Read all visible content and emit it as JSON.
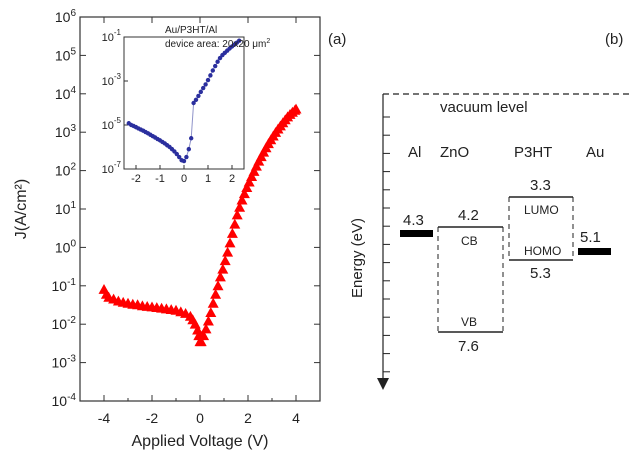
{
  "panels": {
    "a_label": "(a)",
    "b_label": "(b)"
  },
  "chart_data": [
    {
      "type": "scatter",
      "id": "main-jv",
      "xlabel": "Applied Voltage (V)",
      "ylabel": "J(A/cm²)",
      "xlim": [
        -5,
        5
      ],
      "ylim_log10": [
        -4,
        6
      ],
      "yscale": "log",
      "xticks": [
        -4,
        -2,
        0,
        2,
        4
      ],
      "xtick_labels": [
        "-4",
        "-2",
        "0",
        "2",
        "4"
      ],
      "yticks_log10": [
        -4,
        -3,
        -2,
        -1,
        0,
        1,
        2,
        3,
        4,
        5,
        6
      ],
      "ytick_labels": [
        "10-4",
        "10-3",
        "10-2",
        "10-1",
        "100",
        "101",
        "102",
        "103",
        "104",
        "105",
        "106"
      ],
      "marker": "triangle",
      "color": "#ff0000",
      "grid": false,
      "points": [
        [
          -4.0,
          0.08
        ],
        [
          -3.9,
          0.06
        ],
        [
          -3.8,
          0.05
        ],
        [
          -3.6,
          0.045
        ],
        [
          -3.4,
          0.04
        ],
        [
          -3.2,
          0.037
        ],
        [
          -3.0,
          0.035
        ],
        [
          -2.8,
          0.033
        ],
        [
          -2.6,
          0.032
        ],
        [
          -2.4,
          0.03
        ],
        [
          -2.2,
          0.029
        ],
        [
          -2.0,
          0.028
        ],
        [
          -1.8,
          0.027
        ],
        [
          -1.6,
          0.026
        ],
        [
          -1.4,
          0.025
        ],
        [
          -1.2,
          0.024
        ],
        [
          -1.0,
          0.023
        ],
        [
          -0.8,
          0.021
        ],
        [
          -0.6,
          0.019
        ],
        [
          -0.4,
          0.016
        ],
        [
          -0.3,
          0.013
        ],
        [
          -0.2,
          0.01
        ],
        [
          -0.1,
          0.007
        ],
        [
          -0.05,
          0.005
        ],
        [
          0.0,
          0.0035
        ],
        [
          0.05,
          0.0035
        ],
        [
          0.15,
          0.005
        ],
        [
          0.25,
          0.0075
        ],
        [
          0.35,
          0.012
        ],
        [
          0.45,
          0.02
        ],
        [
          0.55,
          0.035
        ],
        [
          0.65,
          0.06
        ],
        [
          0.75,
          0.1
        ],
        [
          0.85,
          0.17
        ],
        [
          0.95,
          0.27
        ],
        [
          1.05,
          0.45
        ],
        [
          1.15,
          0.75
        ],
        [
          1.25,
          1.3
        ],
        [
          1.35,
          2.3
        ],
        [
          1.45,
          4.0
        ],
        [
          1.55,
          7.0
        ],
        [
          1.65,
          11
        ],
        [
          1.75,
          17
        ],
        [
          1.85,
          25
        ],
        [
          1.95,
          36
        ],
        [
          2.05,
          50
        ],
        [
          2.15,
          70
        ],
        [
          2.25,
          95
        ],
        [
          2.35,
          130
        ],
        [
          2.45,
          175
        ],
        [
          2.55,
          230
        ],
        [
          2.65,
          300
        ],
        [
          2.75,
          390
        ],
        [
          2.85,
          500
        ],
        [
          2.95,
          630
        ],
        [
          3.05,
          790
        ],
        [
          3.15,
          980
        ],
        [
          3.25,
          1200
        ],
        [
          3.35,
          1450
        ],
        [
          3.45,
          1750
        ],
        [
          3.55,
          2100
        ],
        [
          3.65,
          2500
        ],
        [
          3.75,
          2900
        ],
        [
          3.85,
          3300
        ],
        [
          3.95,
          3700
        ],
        [
          4.0,
          4000
        ]
      ]
    },
    {
      "type": "scatter",
      "id": "inset-jv",
      "annotation_line1": "Au/P3HT/Al",
      "annotation_line2_prefix": "device area: 20x20 ",
      "annotation_line2_unit": "μm",
      "annotation_line2_sup": "2",
      "xlim": [
        -2.5,
        2.5
      ],
      "ylim_log10": [
        -7,
        -1
      ],
      "yscale": "log",
      "xticks": [
        -2,
        -1,
        0,
        1,
        2
      ],
      "xtick_labels": [
        "-2",
        "-1",
        "0",
        "1",
        "2"
      ],
      "yticks_log10": [
        -7,
        -5,
        -3,
        -1
      ],
      "ytick_labels": [
        "10-7",
        "10-5",
        "10-3",
        "10-1"
      ],
      "marker": "circle",
      "color": "#2b2f9e",
      "line_color": "#8f93c9",
      "points": [
        [
          -2.3,
          1.2e-05
        ],
        [
          -2.2,
          1e-05
        ],
        [
          -2.1,
          9e-06
        ],
        [
          -2.0,
          8e-06
        ],
        [
          -1.9,
          7e-06
        ],
        [
          -1.8,
          6.2e-06
        ],
        [
          -1.7,
          5.5e-06
        ],
        [
          -1.6,
          4.8e-06
        ],
        [
          -1.5,
          4.2e-06
        ],
        [
          -1.4,
          3.6e-06
        ],
        [
          -1.3,
          3.1e-06
        ],
        [
          -1.2,
          2.7e-06
        ],
        [
          -1.1,
          2.3e-06
        ],
        [
          -1.0,
          2e-06
        ],
        [
          -0.9,
          1.7e-06
        ],
        [
          -0.8,
          1.45e-06
        ],
        [
          -0.7,
          1.2e-06
        ],
        [
          -0.6,
          1e-06
        ],
        [
          -0.5,
          8e-07
        ],
        [
          -0.4,
          6.3e-07
        ],
        [
          -0.3,
          4.8e-07
        ],
        [
          -0.2,
          3.5e-07
        ],
        [
          -0.1,
          2.5e-07
        ],
        [
          0.0,
          2.3e-07
        ],
        [
          0.1,
          3.5e-07
        ],
        [
          0.2,
          8e-07
        ],
        [
          0.3,
          2.5e-06
        ],
        [
          0.4,
          0.0001
        ],
        [
          0.5,
          0.00014
        ],
        [
          0.6,
          0.00021
        ],
        [
          0.7,
          0.00032
        ],
        [
          0.8,
          0.00048
        ],
        [
          0.9,
          0.0007
        ],
        [
          1.0,
          0.0011
        ],
        [
          1.1,
          0.0018
        ],
        [
          1.2,
          0.003
        ],
        [
          1.3,
          0.0048
        ],
        [
          1.4,
          0.0075
        ],
        [
          1.5,
          0.011
        ],
        [
          1.6,
          0.015
        ],
        [
          1.7,
          0.019
        ],
        [
          1.8,
          0.024
        ],
        [
          1.9,
          0.03
        ],
        [
          2.0,
          0.037
        ],
        [
          2.1,
          0.045
        ],
        [
          2.2,
          0.055
        ],
        [
          2.3,
          0.068
        ]
      ]
    },
    {
      "type": "diagram",
      "id": "energy-levels",
      "vacuum_label": "vacuum level",
      "axis_label": "Energy (eV)",
      "energy_range_eV": [
        0,
        9.8
      ],
      "materials": [
        {
          "name": "Al",
          "center_frac": 0.1
        },
        {
          "name": "ZnO",
          "center_frac": 0.34
        },
        {
          "name": "P3HT",
          "center_frac": 0.66
        },
        {
          "name": "Au",
          "center_frac": 0.88
        }
      ],
      "levels": [
        {
          "id": "al-work-function",
          "energy": 4.3,
          "label": "4.3",
          "style": "thick"
        },
        {
          "id": "zno-cb",
          "energy": 4.2,
          "label": "4.2",
          "band": "CB"
        },
        {
          "id": "zno-vb",
          "energy": 7.6,
          "label": "7.6",
          "band": "VB"
        },
        {
          "id": "p3ht-lumo",
          "energy": 3.3,
          "label": "3.3",
          "band": "LUMO"
        },
        {
          "id": "p3ht-homo",
          "energy": 5.3,
          "label": "5.3",
          "band": "HOMO"
        },
        {
          "id": "au-work-function",
          "energy": 5.1,
          "label": "5.1",
          "style": "thick"
        }
      ]
    }
  ]
}
